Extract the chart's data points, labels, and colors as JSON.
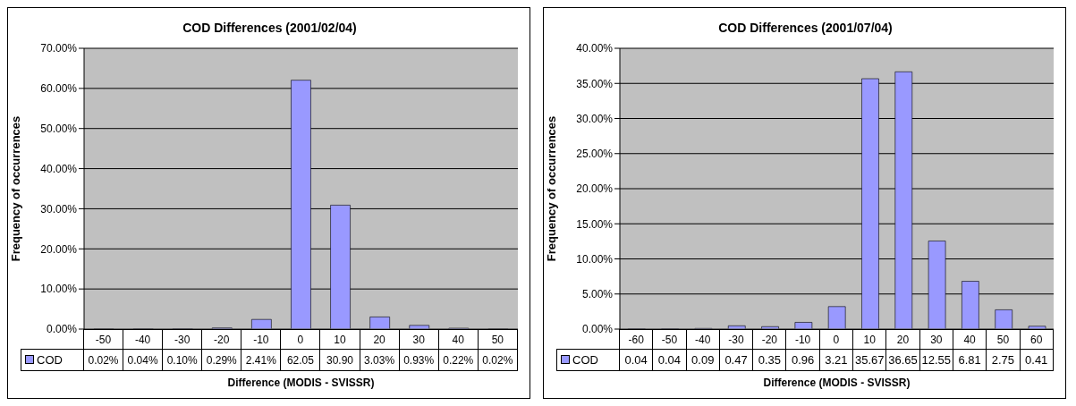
{
  "chart_data": [
    {
      "type": "bar",
      "title": "COD Differences (2001/02/04)",
      "xlabel": "Difference (MODIS - SVISSR)",
      "ylabel": "Frequency of occurrences",
      "categories": [
        "-50",
        "-40",
        "-30",
        "-20",
        "-10",
        "0",
        "10",
        "20",
        "30",
        "40",
        "50"
      ],
      "series": [
        {
          "name": "COD",
          "color": "#9999ff",
          "values": [
            0.02,
            0.04,
            0.1,
            0.29,
            2.41,
            62.05,
            30.9,
            3.03,
            0.93,
            0.22,
            0.02
          ],
          "value_labels": [
            "0.02%",
            "0.04%",
            "0.10%",
            "0.29%",
            "2.41%",
            "62.05",
            "30.90",
            "3.03%",
            "0.93%",
            "0.22%",
            "0.02%"
          ]
        }
      ],
      "ylim": [
        0,
        70
      ],
      "yticks": [
        {
          "value": 0,
          "label": "0.00%"
        },
        {
          "value": 10,
          "label": "10.00%"
        },
        {
          "value": 20,
          "label": "20.00%"
        },
        {
          "value": 30,
          "label": "30.00%"
        },
        {
          "value": 40,
          "label": "40.00%"
        },
        {
          "value": 50,
          "label": "50.00%"
        },
        {
          "value": 60,
          "label": "60.00%"
        },
        {
          "value": 70,
          "label": "70.00%"
        }
      ],
      "grid": "y",
      "legend": "bottom"
    },
    {
      "type": "bar",
      "title": "COD Differences (2001/07/04)",
      "xlabel": "Difference (MODIS - SVISSR)",
      "ylabel": "Frequency of occurrences",
      "categories": [
        "-60",
        "-50",
        "-40",
        "-30",
        "-20",
        "-10",
        "0",
        "10",
        "20",
        "30",
        "40",
        "50",
        "60"
      ],
      "series": [
        {
          "name": "COD",
          "color": "#9999ff",
          "values": [
            0.04,
            0.04,
            0.09,
            0.47,
            0.35,
            0.96,
            3.21,
            35.67,
            36.65,
            12.55,
            6.81,
            2.75,
            0.41
          ],
          "value_labels": [
            "0.04",
            "0.04",
            "0.09",
            "0.47",
            "0.35",
            "0.96",
            "3.21",
            "35.67",
            "36.65",
            "12.55",
            "6.81",
            "2.75",
            "0.41"
          ]
        }
      ],
      "ylim": [
        0,
        40
      ],
      "yticks": [
        {
          "value": 0,
          "label": "0.00%"
        },
        {
          "value": 5,
          "label": "5.00%"
        },
        {
          "value": 10,
          "label": "10.00%"
        },
        {
          "value": 15,
          "label": "15.00%"
        },
        {
          "value": 20,
          "label": "20.00%"
        },
        {
          "value": 25,
          "label": "25.00%"
        },
        {
          "value": 30,
          "label": "30.00%"
        },
        {
          "value": 35,
          "label": "35.00%"
        },
        {
          "value": 40,
          "label": "40.00%"
        }
      ],
      "grid": "y",
      "legend": "bottom"
    }
  ]
}
